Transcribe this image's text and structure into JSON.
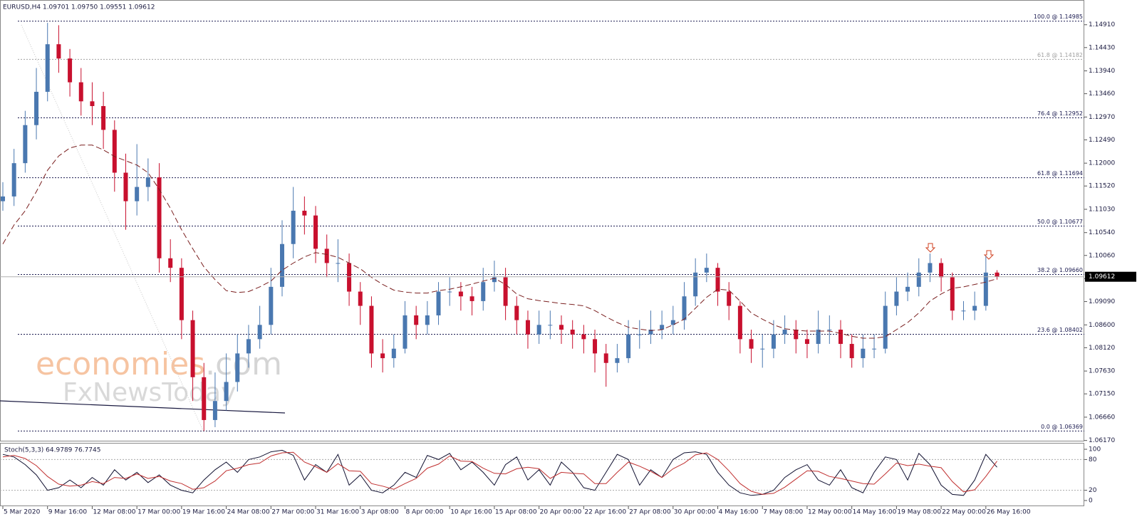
{
  "chart_data": [
    {
      "type": "candlestick",
      "title": "EURUSD,H4 1.09701 1.09750 1.09551 1.09612",
      "watermark": {
        "brand": "economies",
        "domain": ".com",
        "sub": "FxNewsToday"
      },
      "categories": [
        "5 Mar 2020",
        null,
        null,
        null,
        "9 Mar 16:00",
        null,
        null,
        null,
        "12 Mar 08:00",
        null,
        null,
        null,
        "17 Mar 00:00",
        null,
        null,
        null,
        "19 Mar 16:00",
        null,
        null,
        null,
        "24 Mar 08:00",
        null,
        null,
        null,
        "27 Mar 00:00",
        null,
        null,
        null,
        "31 Mar 16:00",
        null,
        null,
        null,
        "3 Apr 08:00",
        null,
        null,
        null,
        "8 Apr 00:00",
        null,
        null,
        null,
        "10 Apr 16:00",
        null,
        null,
        null,
        "15 Apr 08:00",
        null,
        null,
        null,
        "20 Apr 00:00",
        null,
        null,
        null,
        "22 Apr 16:00",
        null,
        null,
        null,
        "27 Apr 08:00",
        null,
        null,
        null,
        "30 Apr 00:00",
        null,
        null,
        null,
        "4 May 16:00",
        null,
        null,
        null,
        "7 May 08:00",
        null,
        null,
        null,
        "12 May 00:00",
        null,
        null,
        null,
        "14 May 16:00",
        null,
        null,
        null,
        "19 May 08:00",
        null,
        null,
        null,
        "22 May 00:00",
        null,
        null,
        null,
        "26 May 16:00",
        null
      ],
      "open": [
        1.112,
        1.113,
        1.12,
        1.128,
        1.135,
        1.145,
        1.142,
        1.137,
        1.133,
        1.132,
        1.127,
        1.118,
        1.112,
        1.115,
        1.117,
        1.1,
        1.098,
        1.087,
        1.075,
        1.066,
        1.07,
        1.074,
        1.08,
        1.083,
        1.086,
        1.094,
        1.103,
        1.11,
        1.109,
        1.102,
        1.099,
        1.099,
        1.093,
        1.09,
        1.08,
        1.079,
        1.081,
        1.088,
        1.086,
        1.088,
        1.093,
        1.093,
        1.092,
        1.091,
        1.095,
        1.096,
        1.09,
        1.087,
        1.084,
        1.086,
        1.086,
        1.085,
        1.084,
        1.083,
        1.08,
        1.078,
        1.079,
        1.084,
        1.084,
        1.085,
        1.086,
        1.087,
        1.092,
        1.097,
        1.098,
        1.093,
        1.09,
        1.083,
        1.081,
        1.081,
        1.084,
        1.085,
        1.083,
        1.082,
        1.085,
        1.085,
        1.082,
        1.079,
        1.081,
        1.081,
        1.09,
        1.093,
        1.094,
        1.097,
        1.099,
        1.096,
        1.089,
        1.089,
        1.09,
        1.097
      ],
      "high": [
        1.116,
        1.123,
        1.131,
        1.14,
        1.1495,
        1.149,
        1.144,
        1.14,
        1.137,
        1.135,
        1.129,
        1.122,
        1.124,
        1.121,
        1.12,
        1.104,
        1.1,
        1.089,
        1.078,
        1.076,
        1.08,
        1.084,
        1.086,
        1.09,
        1.098,
        1.108,
        1.115,
        1.113,
        1.111,
        1.105,
        1.104,
        1.101,
        1.095,
        1.092,
        1.083,
        1.084,
        1.091,
        1.09,
        1.091,
        1.095,
        1.096,
        1.095,
        1.094,
        1.098,
        1.0995,
        1.098,
        1.092,
        1.089,
        1.089,
        1.089,
        1.088,
        1.087,
        1.086,
        1.085,
        1.082,
        1.082,
        1.087,
        1.087,
        1.089,
        1.089,
        1.09,
        1.095,
        1.1,
        1.101,
        1.099,
        1.095,
        1.091,
        1.085,
        1.084,
        1.087,
        1.088,
        1.087,
        1.085,
        1.089,
        1.088,
        1.087,
        1.084,
        1.084,
        1.084,
        1.093,
        1.096,
        1.097,
        1.1,
        1.101,
        1.1,
        1.097,
        1.091,
        1.093,
        1.1005,
        1.0975
      ],
      "low": [
        1.11,
        1.111,
        1.118,
        1.125,
        1.133,
        1.139,
        1.134,
        1.13,
        1.128,
        1.123,
        1.114,
        1.106,
        1.109,
        1.112,
        1.097,
        1.095,
        1.083,
        1.07,
        1.0637,
        1.0645,
        1.068,
        1.072,
        1.077,
        1.081,
        1.084,
        1.092,
        1.1,
        1.105,
        1.099,
        1.096,
        1.095,
        1.09,
        1.086,
        1.077,
        1.076,
        1.077,
        1.08,
        1.083,
        1.084,
        1.086,
        1.09,
        1.089,
        1.088,
        1.089,
        1.093,
        1.087,
        1.084,
        1.081,
        1.082,
        1.083,
        1.082,
        1.081,
        1.08,
        1.076,
        1.073,
        1.076,
        1.078,
        1.081,
        1.082,
        1.083,
        1.084,
        1.085,
        1.09,
        1.095,
        1.09,
        1.087,
        1.08,
        1.078,
        1.077,
        1.079,
        1.082,
        1.08,
        1.079,
        1.08,
        1.082,
        1.079,
        1.077,
        1.077,
        1.079,
        1.08,
        1.088,
        1.091,
        1.092,
        1.095,
        1.093,
        1.087,
        1.087,
        1.087,
        1.089,
        1.0955
      ],
      "close": [
        1.113,
        1.12,
        1.128,
        1.135,
        1.145,
        1.142,
        1.137,
        1.133,
        1.132,
        1.127,
        1.118,
        1.112,
        1.115,
        1.117,
        1.1,
        1.098,
        1.087,
        1.075,
        1.066,
        1.07,
        1.074,
        1.08,
        1.083,
        1.086,
        1.094,
        1.103,
        1.11,
        1.109,
        1.102,
        1.099,
        1.099,
        1.093,
        1.09,
        1.08,
        1.079,
        1.081,
        1.088,
        1.086,
        1.088,
        1.093,
        1.093,
        1.092,
        1.091,
        1.095,
        1.096,
        1.09,
        1.087,
        1.084,
        1.086,
        1.086,
        1.085,
        1.084,
        1.083,
        1.08,
        1.078,
        1.079,
        1.084,
        1.084,
        1.085,
        1.086,
        1.087,
        1.092,
        1.097,
        1.098,
        1.093,
        1.09,
        1.083,
        1.081,
        1.081,
        1.084,
        1.085,
        1.083,
        1.082,
        1.085,
        1.085,
        1.082,
        1.079,
        1.081,
        1.081,
        1.09,
        1.093,
        1.094,
        1.097,
        1.099,
        1.096,
        1.089,
        1.089,
        1.09,
        1.097,
        1.0961
      ],
      "up_color": "#4a78b0",
      "down_color": "#c8102e",
      "moving_average": {
        "color": "#7a1f1f",
        "values": [
          1.103,
          1.107,
          1.11,
          1.114,
          1.1185,
          1.1215,
          1.1232,
          1.1238,
          1.1238,
          1.1228,
          1.1214,
          1.1205,
          1.1196,
          1.118,
          1.1145,
          1.1105,
          1.106,
          1.102,
          1.0982,
          1.0955,
          1.0932,
          1.0928,
          1.093,
          1.094,
          1.0952,
          1.0975,
          1.099,
          1.1003,
          1.1012,
          1.1008,
          1.1002,
          1.099,
          1.0978,
          1.096,
          1.0945,
          1.0933,
          1.0929,
          1.0927,
          1.0927,
          1.0932,
          1.0935,
          1.094,
          1.0946,
          1.0952,
          1.0958,
          1.0945,
          1.0925,
          1.0915,
          1.0911,
          1.0908,
          1.0905,
          1.0903,
          1.09,
          1.089,
          1.0877,
          1.0865,
          1.0855,
          1.0851,
          1.0848,
          1.085,
          1.086,
          1.0872,
          1.0895,
          1.0918,
          1.0935,
          1.0933,
          1.091,
          1.0885,
          1.0872,
          1.086,
          1.0852,
          1.0849,
          1.0847,
          1.0847,
          1.0847,
          1.0842,
          1.0836,
          1.0832,
          1.0832,
          1.0835,
          1.085,
          1.0865,
          1.0885,
          1.091,
          1.0925,
          1.0937,
          1.094,
          1.0945,
          1.095,
          1.0957
        ]
      },
      "levels": [
        {
          "value": 1.14985,
          "label": "100.0 @ 1.14985",
          "color": "#1a1a50"
        },
        {
          "value": 1.14182,
          "label": "61.8 @ 1.14182",
          "color": "#a0a0a0"
        },
        {
          "value": 1.12952,
          "label": "76.4 @ 1.12952",
          "color": "#1a1a50"
        },
        {
          "value": 1.11694,
          "label": "61.8 @ 1.11694",
          "color": "#1a1a50"
        },
        {
          "value": 1.10677,
          "label": "50.0 @ 1.10677",
          "color": "#1a1a50"
        },
        {
          "value": 1.0966,
          "label": "38.2 @ 1.09660",
          "color": "#1a1a50"
        },
        {
          "value": 1.08402,
          "label": "23.6 @ 1.08402",
          "color": "#1a1a50"
        },
        {
          "value": 1.06369,
          "label": "0.0 @ 1.06369",
          "color": "#1a1a50"
        }
      ],
      "last_price": {
        "value": 1.09612,
        "label": "1.09612"
      },
      "ylim": [
        1.0615,
        1.1543
      ],
      "yticks": [
        {
          "value": 1.0617,
          "label": "1.06170"
        },
        {
          "value": 1.0666,
          "label": "1.06660"
        },
        {
          "value": 1.0715,
          "label": "1.07150"
        },
        {
          "value": 1.0763,
          "label": "1.07630"
        },
        {
          "value": 1.0812,
          "label": "1.08120"
        },
        {
          "value": 1.086,
          "label": "1.08600"
        },
        {
          "value": 1.0909,
          "label": "1.09090"
        },
        {
          "value": 1.0957,
          "label": "1.09570"
        },
        {
          "value": 1.1006,
          "label": "1.10060"
        },
        {
          "value": 1.1054,
          "label": "1.10540"
        },
        {
          "value": 1.1103,
          "label": "1.11030"
        },
        {
          "value": 1.1152,
          "label": "1.11520"
        },
        {
          "value": 1.12,
          "label": "1.12000"
        },
        {
          "value": 1.1249,
          "label": "1.12490"
        },
        {
          "value": 1.1297,
          "label": "1.12970"
        },
        {
          "value": 1.1346,
          "label": "1.13460"
        },
        {
          "value": 1.1394,
          "label": "1.13940"
        },
        {
          "value": 1.1443,
          "label": "1.14430"
        },
        {
          "value": 1.1491,
          "label": "1.14910"
        }
      ]
    },
    {
      "type": "line",
      "title": "Stoch(5,3,3) 64.9789 76.7745",
      "series": [
        {
          "color": "#101030",
          "values": [
            90,
            85,
            70,
            50,
            20,
            25,
            40,
            25,
            45,
            30,
            60,
            40,
            55,
            35,
            50,
            30,
            20,
            15,
            40,
            60,
            75,
            55,
            80,
            85,
            95,
            98,
            88,
            40,
            70,
            55,
            90,
            30,
            50,
            20,
            15,
            30,
            55,
            45,
            88,
            80,
            92,
            60,
            75,
            55,
            30,
            70,
            85,
            40,
            60,
            30,
            75,
            55,
            25,
            20,
            55,
            90,
            80,
            30,
            60,
            45,
            80,
            93,
            95,
            90,
            55,
            30,
            15,
            10,
            12,
            20,
            45,
            60,
            70,
            40,
            30,
            60,
            25,
            15,
            55,
            85,
            80,
            40,
            92,
            70,
            30,
            12,
            10,
            40,
            90,
            64.9789
          ]
        },
        {
          "color": "#c03030",
          "values": [
            85,
            88,
            82,
            68,
            47,
            32,
            28,
            30,
            37,
            33,
            45,
            43,
            52,
            43,
            47,
            38,
            33,
            22,
            25,
            38,
            58,
            63,
            70,
            73,
            87,
            93,
            94,
            75,
            66,
            55,
            72,
            58,
            57,
            33,
            28,
            22,
            33,
            43,
            63,
            71,
            87,
            77,
            76,
            63,
            53,
            52,
            62,
            65,
            62,
            43,
            55,
            53,
            52,
            33,
            33,
            55,
            75,
            67,
            57,
            45,
            62,
            73,
            89,
            93,
            80,
            58,
            33,
            18,
            12,
            14,
            26,
            42,
            58,
            57,
            47,
            43,
            38,
            33,
            32,
            52,
            73,
            68,
            71,
            67,
            64,
            37,
            17,
            21,
            47,
            76.7745
          ]
        }
      ],
      "ylim": [
        0,
        100
      ],
      "yticks": [
        0,
        20,
        80,
        100
      ]
    }
  ]
}
